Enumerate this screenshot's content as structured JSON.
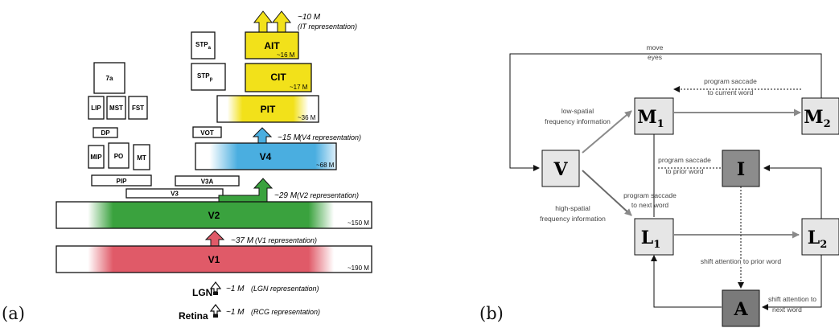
{
  "panel_a": {
    "letter": "(a)",
    "small_areas": {
      "a7": "7a",
      "lip": "LIP",
      "mst": "MST",
      "fst": "FST",
      "dp": "DP",
      "mip": "MIP",
      "po": "PO",
      "mt": "MT",
      "pip": "PIP",
      "v3": "V3",
      "v3a": "V3A",
      "vot": "VOT",
      "stpa_main": "STP",
      "stpa_sub": "a",
      "stpp_main": "STP",
      "stpp_sub": "p"
    },
    "stages": {
      "ait": {
        "label": "AIT",
        "count": "~16 M"
      },
      "cit": {
        "label": "CIT",
        "count": "~17 M"
      },
      "pit": {
        "label": "PIT",
        "count": "~36 M"
      },
      "v4": {
        "label": "V4",
        "count": "~68 M"
      },
      "v2": {
        "label": "V2",
        "count": "~150 M"
      },
      "v1": {
        "label": "V1",
        "count": "~190 M"
      },
      "lgn": {
        "label": "LGN"
      },
      "retina": {
        "label": "Retina"
      }
    },
    "representations": {
      "it": {
        "count": "~10 M",
        "text": "(IT representation)"
      },
      "v4": {
        "count": "~15 M",
        "text": "(V4 representation)"
      },
      "v2": {
        "count": "~29 M",
        "text": "(V2 representation)"
      },
      "v1": {
        "count": "~37 M",
        "text": "(V1 representation)"
      },
      "lgn": {
        "count": "~1 M",
        "text": "(LGN representation)"
      },
      "rcg": {
        "count": "~1 M",
        "text": "(RCG representation)"
      }
    },
    "colors": {
      "it": "#f2e11a",
      "v4": "#4aaee0",
      "v2": "#3aa23e",
      "v1": "#e05a68"
    }
  },
  "panel_b": {
    "letter": "(b)",
    "nodes": {
      "v": "V",
      "m1_main": "M",
      "m1_sub": "1",
      "m2_main": "M",
      "m2_sub": "2",
      "i": "I",
      "l1_main": "L",
      "l1_sub": "1",
      "l2_main": "L",
      "l2_sub": "2",
      "a": "A"
    },
    "labels": {
      "move_eyes_1": "move",
      "move_eyes_2": "eyes",
      "saccade_current_1": "program saccade",
      "saccade_current_2": "to current word",
      "low_spatial_1": "low-spatial",
      "low_spatial_2": "frequency information",
      "saccade_prior_1": "program saccade",
      "saccade_prior_2": "to prior word",
      "saccade_next_1": "program saccade",
      "saccade_next_2": "to next word",
      "high_spatial_1": "high-spatial",
      "high_spatial_2": "frequency information",
      "shift_prior": "shift attention to prior word",
      "shift_next_1": "shift attention to",
      "shift_next_2": "next word"
    }
  }
}
